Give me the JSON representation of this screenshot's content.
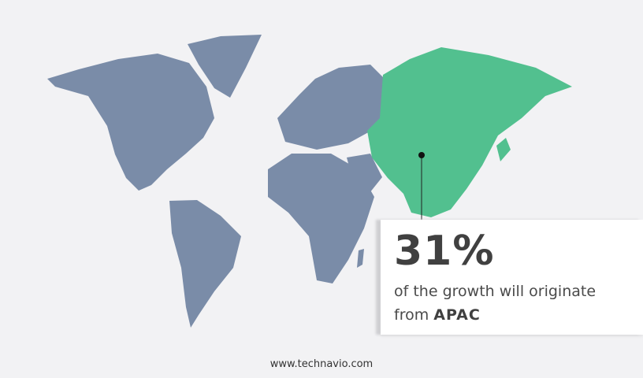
{
  "colors": {
    "background": "#f2f2f4",
    "land": "#7a8ca8",
    "highlight": "#52c08f",
    "text": "#404040"
  },
  "callout": {
    "percent": "31%",
    "text": "of the growth will originate",
    "prefix": "from",
    "region": "APAC"
  },
  "footer": {
    "url": "www.technavio.com"
  }
}
